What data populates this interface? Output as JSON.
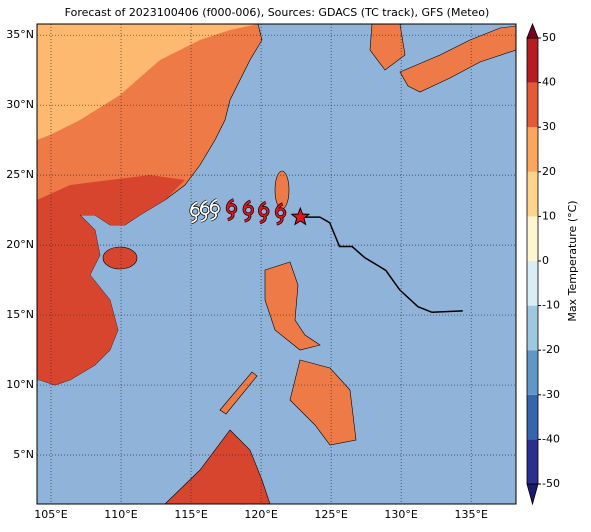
{
  "chart_data": {
    "type": "map",
    "title": "Forecast of 2023100406 (f000-006), Sources: GDACS (TC track), GFS (Meteo)",
    "xlim": [
      104,
      138.2
    ],
    "ylim": [
      1.5,
      35.8
    ],
    "xticks": [
      {
        "value": 105,
        "label": "105°E"
      },
      {
        "value": 110,
        "label": "110°E"
      },
      {
        "value": 115,
        "label": "115°E"
      },
      {
        "value": 120,
        "label": "120°E"
      },
      {
        "value": 125,
        "label": "125°E"
      },
      {
        "value": 130,
        "label": "130°E"
      },
      {
        "value": 135,
        "label": "135°E"
      }
    ],
    "yticks": [
      {
        "value": 5,
        "label": "5°N"
      },
      {
        "value": 10,
        "label": "10°N"
      },
      {
        "value": 15,
        "label": "15°N"
      },
      {
        "value": 20,
        "label": "20°N"
      },
      {
        "value": 25,
        "label": "25°N"
      },
      {
        "value": 30,
        "label": "30°N"
      },
      {
        "value": 35,
        "label": "35°N"
      }
    ],
    "grid": true,
    "track": {
      "lon": [
        122.8,
        124.2,
        124.9,
        125.6,
        126.5,
        127.4,
        128.9,
        129.9,
        131.2,
        132.2,
        134.4
      ],
      "lat": [
        22.0,
        22.0,
        21.6,
        19.9,
        19.9,
        19.1,
        18.2,
        16.8,
        15.6,
        15.2,
        15.3
      ],
      "color": "#000000"
    },
    "current_position": {
      "lon": 122.8,
      "lat": 22.0,
      "color": "#e8141c"
    },
    "forecast_symbols": {
      "lon": [
        115.3,
        116.0,
        116.7,
        117.9,
        119.1,
        120.2,
        121.4
      ],
      "lat": [
        22.4,
        22.5,
        22.6,
        22.6,
        22.5,
        22.4,
        22.3
      ],
      "colors": [
        "#ffffff",
        "#ffffff",
        "#ffffff",
        "#e8141c",
        "#e8141c",
        "#e8141c",
        "#e8141c"
      ]
    },
    "colorbar": {
      "label": "Max Temperature (°C)",
      "ticks": [
        -50,
        -40,
        -30,
        -20,
        -10,
        0,
        10,
        20,
        30,
        40,
        50
      ],
      "colors": [
        "#2b2f8f",
        "#3565ad",
        "#5f98c8",
        "#9ec7e0",
        "#d9eef4",
        "#fdf6d0",
        "#fed38a",
        "#fca55d",
        "#e55a36",
        "#b71c23"
      ],
      "extend_colors": [
        "#1a1a6e",
        "#7a0020"
      ]
    }
  }
}
